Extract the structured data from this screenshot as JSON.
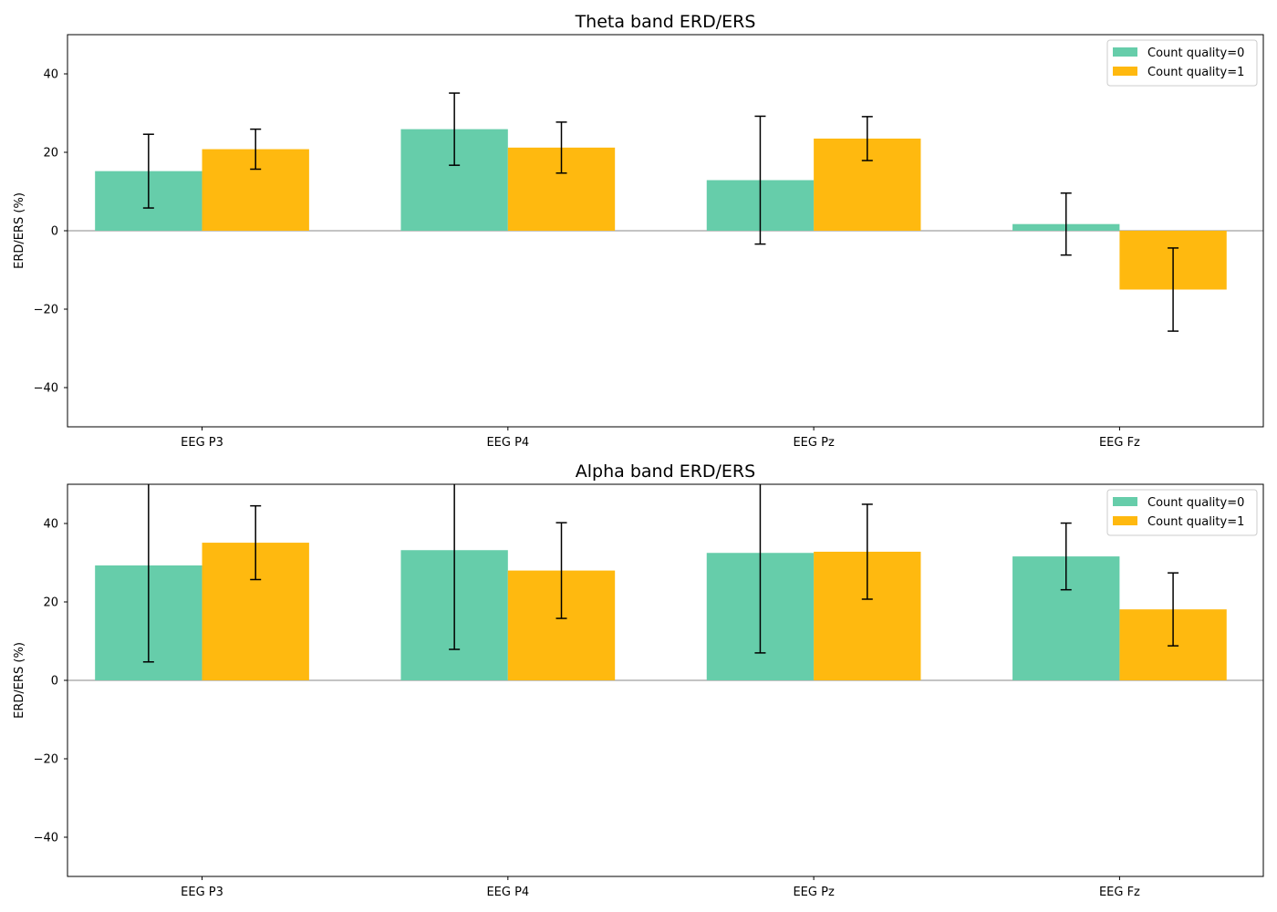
{
  "chart_data": [
    {
      "type": "bar",
      "title": "Theta band ERD/ERS",
      "xlabel": "",
      "ylabel": "ERD/ERS (%)",
      "ylim": [
        -50,
        50
      ],
      "yticks": [
        -40,
        -20,
        0,
        20,
        40
      ],
      "ytick_labels": [
        "−40",
        "−20",
        "0",
        "20",
        "40"
      ],
      "grid": false,
      "legend_position": "top-right",
      "categories": [
        "EEG P3",
        "EEG P4",
        "EEG Pz",
        "EEG Fz"
      ],
      "series": [
        {
          "name": "Count quality=0",
          "color": "#66cdaa",
          "values": [
            15.2,
            25.9,
            12.9,
            1.7
          ],
          "errors": [
            9.4,
            9.2,
            16.3,
            7.9
          ]
        },
        {
          "name": "Count quality=1",
          "color": "#ffb90f",
          "values": [
            20.8,
            21.2,
            23.5,
            -15.0
          ],
          "errors": [
            5.1,
            6.5,
            5.6,
            10.6
          ]
        }
      ]
    },
    {
      "type": "bar",
      "title": "Alpha band ERD/ERS",
      "xlabel": "",
      "ylabel": "ERD/ERS (%)",
      "ylim": [
        -50,
        50
      ],
      "yticks": [
        -40,
        -20,
        0,
        20,
        40
      ],
      "ytick_labels": [
        "−40",
        "−20",
        "0",
        "20",
        "40"
      ],
      "grid": false,
      "legend_position": "top-right",
      "categories": [
        "EEG P3",
        "EEG P4",
        "EEG Pz",
        "EEG Fz"
      ],
      "series": [
        {
          "name": "Count quality=0",
          "color": "#66cdaa",
          "values": [
            29.3,
            33.2,
            32.5,
            31.6
          ],
          "errors": [
            24.6,
            25.3,
            25.5,
            8.5
          ]
        },
        {
          "name": "Count quality=1",
          "color": "#ffb90f",
          "values": [
            35.1,
            28.0,
            32.8,
            18.1
          ],
          "errors": [
            9.4,
            12.2,
            12.1,
            9.3
          ]
        }
      ]
    }
  ]
}
